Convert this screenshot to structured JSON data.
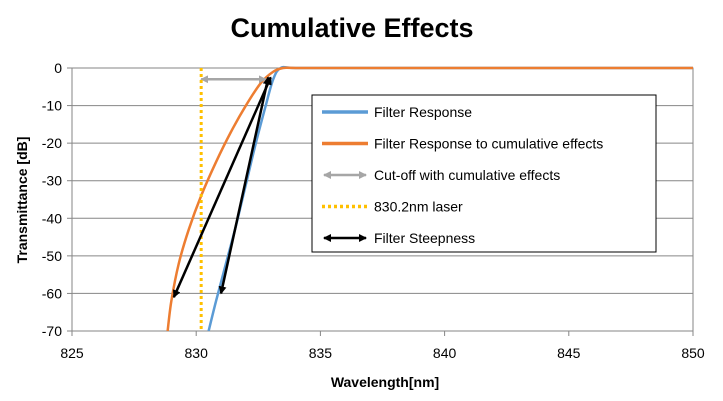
{
  "chart_data": {
    "type": "line",
    "title": "Cumulative Effects",
    "xlabel": "Wavelength[nm]",
    "ylabel": "Transmittance [dB]",
    "xlim": [
      825,
      850
    ],
    "ylim": [
      -70,
      0
    ],
    "xticks": [
      "825",
      "830",
      "835",
      "840",
      "845",
      "850"
    ],
    "yticks": [
      "0",
      "-10",
      "-20",
      "-30",
      "-40",
      "-50",
      "-60",
      "-70"
    ],
    "grid": "horizontal",
    "legend_position": "right",
    "series": [
      {
        "name": "Filter Response",
        "color": "#5b9bd5",
        "style": "solid",
        "x": [
          830.5,
          830.8,
          831.2,
          831.6,
          832.0,
          832.4,
          832.8,
          833.1,
          833.4,
          834.0,
          836.0,
          850.0
        ],
        "y": [
          -70,
          -62,
          -52,
          -42,
          -31,
          -20,
          -10,
          -3,
          0,
          0,
          0,
          0
        ]
      },
      {
        "name": "Filter Response to cumulative effects",
        "color": "#ed7d31",
        "style": "solid",
        "x": [
          828.85,
          829.0,
          829.3,
          829.7,
          830.2,
          830.8,
          831.4,
          832.0,
          832.6,
          833.1,
          833.5,
          834.0,
          836.0,
          850.0
        ],
        "y": [
          -70,
          -62,
          -52,
          -43,
          -34,
          -25,
          -17,
          -10,
          -4,
          -1,
          0,
          0,
          0,
          0
        ]
      },
      {
        "name": "Cut-off with cumulative effects",
        "color": "#a6a6a6",
        "style": "double-arrow",
        "x": [
          830.2,
          832.8
        ],
        "y": [
          -3,
          -3
        ]
      },
      {
        "name": "830.2nm laser",
        "color": "#ffc000",
        "style": "dotted",
        "x": [
          830.2,
          830.2
        ],
        "y": [
          0,
          -70
        ]
      },
      {
        "name": "Filter Steepness",
        "color": "#000000",
        "style": "double-arrow",
        "x": [
          829.1,
          833.0
        ],
        "y": [
          -61,
          -2.5
        ]
      }
    ],
    "extra_arrows": [
      {
        "series": "Filter Steepness",
        "x": [
          831.0,
          832.9
        ],
        "y": [
          -60,
          -2.5
        ]
      }
    ]
  }
}
